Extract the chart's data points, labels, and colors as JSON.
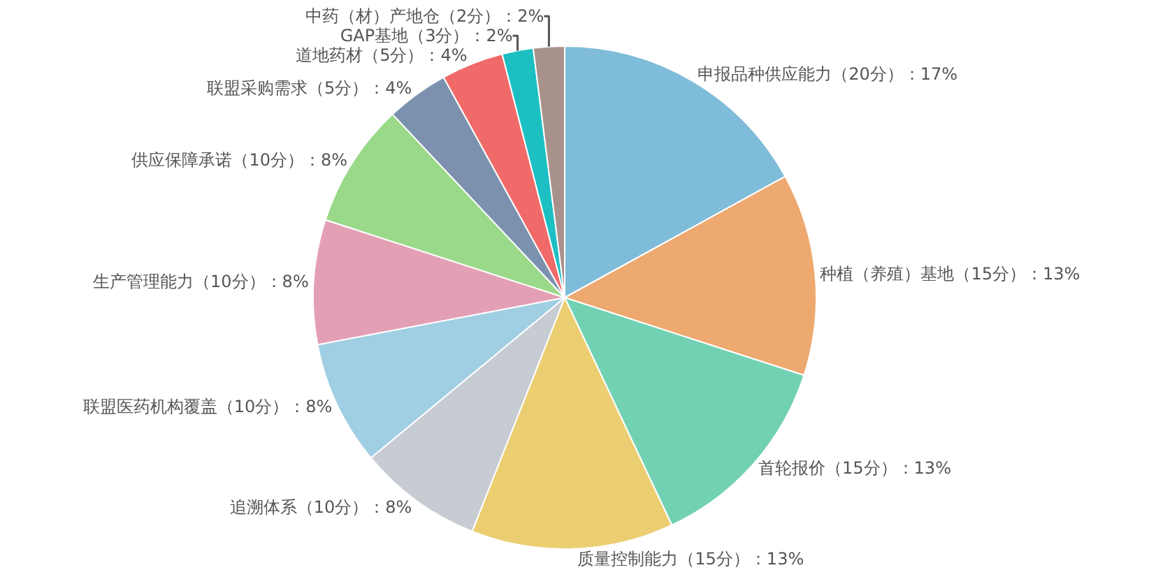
{
  "chart_data": {
    "type": "pie",
    "categories": [
      "申报品种供应能力（20分）：17%",
      "种植（养殖）基地（15分）：13%",
      "首轮报价（15分）：13%",
      "质量控制能力（15分）：13%",
      "追溯体系（10分）：8%",
      "联盟医药机构覆盖（10分）：8%",
      "生产管理能力（10分）：8%",
      "供应保障承诺（10分）：8%",
      "联盟采购需求（5分）：4%",
      "道地药材（5分）：4%",
      "GAP基地（3分）：2%",
      "中药（材）产地仓（2分）：2%"
    ],
    "values": [
      17,
      13,
      13,
      13,
      8,
      8,
      8,
      8,
      4,
      4,
      2,
      2
    ],
    "colors": [
      "#7fbcd9",
      "#eda96f",
      "#72d1b3",
      "#ecce72",
      "#c7cbd2",
      "#a0cee3",
      "#e3a0b5",
      "#9bd98a",
      "#7b91ae",
      "#ef6a68",
      "#1cbfc2",
      "#a8918a"
    ],
    "legend": false
  }
}
